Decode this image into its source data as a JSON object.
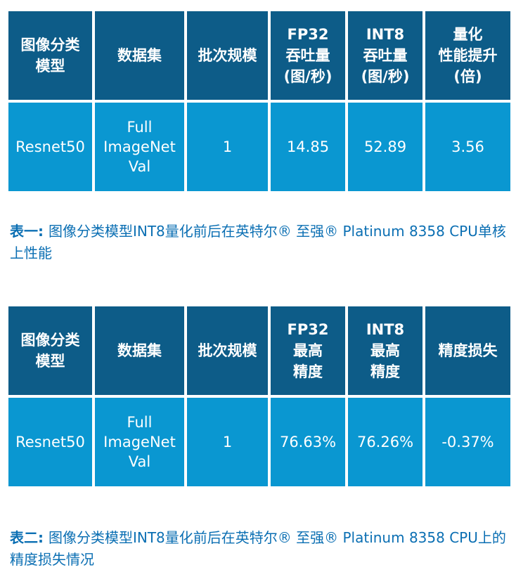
{
  "table1": {
    "headers": [
      "图像分类\n模型",
      "数据集",
      "批次规模",
      "FP32\n吞吐量\n(图/秒)",
      "INT8\n吞吐量\n(图/秒)",
      "量化\n性能提升\n(倍)"
    ],
    "row": [
      "Resnet50",
      "Full\nImageNet\nVal",
      "1",
      "14.85",
      "52.89",
      "3.56"
    ]
  },
  "caption1": {
    "lead": "表一: ",
    "text": "图像分类模型INT8量化前后在英特尔® 至强® Platinum 8358 CPU单核上性能"
  },
  "table2": {
    "headers": [
      "图像分类\n模型",
      "数据集",
      "批次规模",
      "FP32\n最高\n精度",
      "INT8\n最高\n精度",
      "精度损失"
    ],
    "row": [
      "Resnet50",
      "Full\nImageNet\nVal",
      "1",
      "76.63%",
      "76.26%",
      "-0.37%"
    ]
  },
  "caption2": {
    "lead": "表二: ",
    "text": "图像分类模型INT8量化前后在英特尔® 至强® Platinum 8358 CPU上的精度损失情况"
  }
}
